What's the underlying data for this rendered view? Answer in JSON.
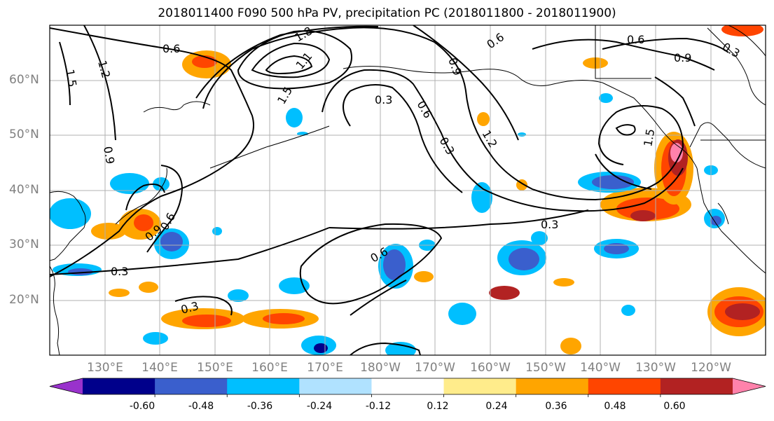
{
  "title": "2018011400 F090 500 hPa PV, precipitation PC (2018011800 - 2018011900)",
  "lat_labels": [
    "60°N",
    "50°N",
    "40°N",
    "30°N",
    "20°N"
  ],
  "lon_labels": [
    "130°E",
    "140°E",
    "150°E",
    "160°E",
    "170°E",
    "180°W",
    "170°W",
    "160°W",
    "150°W",
    "140°W",
    "130°W",
    "120°W"
  ],
  "colorbar": {
    "colors": [
      "#9932cc",
      "#00008b",
      "#3a5fcd",
      "#00bfff",
      "#b0e2ff",
      "#ffffff",
      "#ffec8b",
      "#ffa500",
      "#ff4500",
      "#b22222",
      "#ff82ab"
    ],
    "tick_labels": [
      "-0.60",
      "-0.48",
      "-0.36",
      "-0.24",
      "-0.12",
      "0.12",
      "0.24",
      "0.36",
      "0.48",
      "0.60"
    ]
  },
  "contour_labels": [
    "0.6",
    "1.5",
    "1.2",
    "1.8",
    "1.1",
    "1.5",
    "0.3",
    "0.6",
    "0.9",
    "0.6",
    "1.2",
    "0.3",
    "0.6",
    "0.9",
    "0.3",
    "1.5",
    "0.9",
    "0.9",
    "0.6",
    "0.3",
    "0.3",
    "0.6",
    "0.3"
  ]
}
